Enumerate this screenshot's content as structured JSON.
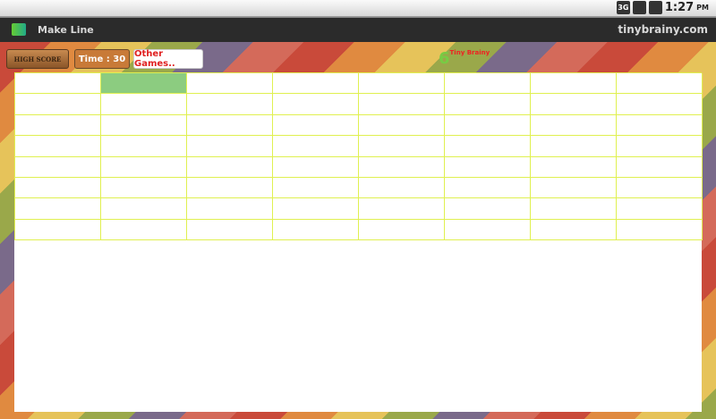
{
  "status_bar": {
    "network": "3G",
    "time": "1:27",
    "ampm": "PM"
  },
  "title_bar": {
    "title": "Make Line",
    "site": "tinybrainy.com"
  },
  "toolbar": {
    "high_score_label": "HIGH SCORE",
    "time_label": "Time : 30",
    "other_games_label": "Other Games.."
  },
  "logo": {
    "number": "6",
    "text": "Tiny Brainy"
  },
  "grid": {
    "rows": 8,
    "cols": 8,
    "highlighted": [
      [
        0,
        1
      ]
    ],
    "highlight_color": "#8ccc80",
    "line_color": "#e0f050"
  }
}
